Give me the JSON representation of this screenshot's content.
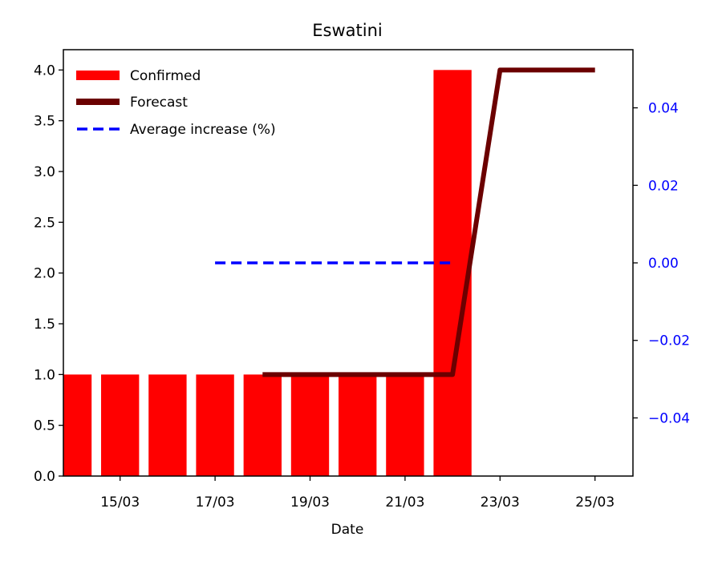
{
  "chart_data": {
    "type": "bar",
    "title": "Eswatini",
    "xlabel": "Date",
    "categories": [
      "14/03",
      "15/03",
      "16/03",
      "17/03",
      "18/03",
      "19/03",
      "20/03",
      "21/03",
      "22/03",
      "23/03",
      "24/03",
      "25/03"
    ],
    "x_tick_labels": [
      "15/03",
      "17/03",
      "19/03",
      "21/03",
      "23/03",
      "25/03"
    ],
    "ylim": [
      0,
      4.2
    ],
    "y_ticks": [
      0.0,
      0.5,
      1.0,
      1.5,
      2.0,
      2.5,
      3.0,
      3.5,
      4.0
    ],
    "y_tick_labels": [
      "0.0",
      "0.5",
      "1.0",
      "1.5",
      "2.0",
      "2.5",
      "3.0",
      "3.5",
      "4.0"
    ],
    "y2lim": [
      -0.055,
      0.055
    ],
    "y2_ticks": [
      -0.04,
      -0.02,
      0.0,
      0.02,
      0.04
    ],
    "y2_tick_labels": [
      "−0.04",
      "−0.02",
      "0.00",
      "0.02",
      "0.04"
    ],
    "grid": false,
    "legend_position": "top-left",
    "series": [
      {
        "name": "Confirmed",
        "kind": "bar",
        "axis": "left",
        "color": "#ff0000",
        "x": [
          "14/03",
          "15/03",
          "16/03",
          "17/03",
          "18/03",
          "19/03",
          "20/03",
          "21/03",
          "22/03"
        ],
        "values": [
          1,
          1,
          1,
          1,
          1,
          1,
          1,
          1,
          4
        ]
      },
      {
        "name": "Forecast",
        "kind": "line",
        "axis": "left",
        "color": "#6b0000",
        "x": [
          "18/03",
          "19/03",
          "20/03",
          "21/03",
          "22/03",
          "23/03",
          "24/03",
          "25/03"
        ],
        "values": [
          1,
          1,
          1,
          1,
          1,
          4,
          4,
          4
        ]
      },
      {
        "name": "Average increase (%)",
        "kind": "dashed-line",
        "axis": "right",
        "color": "#0000ff",
        "x": [
          "17/03",
          "18/03",
          "19/03",
          "20/03",
          "21/03",
          "22/03"
        ],
        "values": [
          0,
          0,
          0,
          0,
          0,
          0
        ]
      }
    ]
  }
}
